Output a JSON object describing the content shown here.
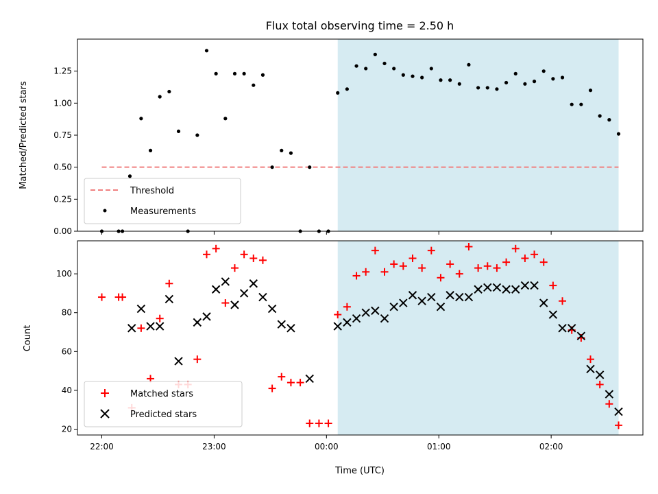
{
  "chart_data": {
    "type": "scatter",
    "title": "Flux total observing time = 2.50 h",
    "xlabel": "Time (UTC)",
    "x_ticks": [
      "22:00",
      "23:00",
      "00:00",
      "01:00",
      "02:00"
    ],
    "x_range": [
      "21:47",
      "02:49"
    ],
    "shaded_interval": {
      "start": "00:06",
      "end": "02:36",
      "color": "#add8e6"
    },
    "panels": [
      {
        "id": "ratio",
        "ylabel": "Matched/Predicted stars",
        "ylim": [
          0,
          1.5
        ],
        "yticks": [
          "0.00",
          "0.25",
          "0.50",
          "0.75",
          "1.00",
          "1.25"
        ],
        "threshold": {
          "name": "Threshold",
          "value": 0.5,
          "from": "22:00",
          "to": "02:36",
          "color": "#f08080"
        },
        "series": [
          {
            "name": "Measurements",
            "color": "#000000",
            "x": [
              "22:00",
              "22:09",
              "22:11",
              "22:15",
              "22:21",
              "22:26",
              "22:31",
              "22:36",
              "22:41",
              "22:46",
              "22:51",
              "22:56",
              "23:01",
              "23:06",
              "23:11",
              "23:16",
              "23:21",
              "23:26",
              "23:31",
              "23:36",
              "23:41",
              "23:46",
              "23:51",
              "23:56",
              "00:01",
              "00:06",
              "00:11",
              "00:16",
              "00:21",
              "00:26",
              "00:31",
              "00:36",
              "00:41",
              "00:46",
              "00:51",
              "00:56",
              "01:01",
              "01:06",
              "01:11",
              "01:16",
              "01:21",
              "01:26",
              "01:31",
              "01:36",
              "01:41",
              "01:46",
              "01:51",
              "01:56",
              "02:01",
              "02:06",
              "02:11",
              "02:16",
              "02:21",
              "02:26",
              "02:31",
              "02:36"
            ],
            "y": [
              0.0,
              0.0,
              0.0,
              0.43,
              0.88,
              0.63,
              1.05,
              1.09,
              0.78,
              0.0,
              0.75,
              1.41,
              1.23,
              0.88,
              1.23,
              1.23,
              1.14,
              1.22,
              0.5,
              0.63,
              0.61,
              0.0,
              0.5,
              0.0,
              0.0,
              1.08,
              1.11,
              1.29,
              1.27,
              1.38,
              1.31,
              1.27,
              1.22,
              1.21,
              1.2,
              1.27,
              1.18,
              1.18,
              1.15,
              1.3,
              1.12,
              1.12,
              1.11,
              1.16,
              1.23,
              1.15,
              1.17,
              1.25,
              1.19,
              1.2,
              0.99,
              0.99,
              1.1,
              0.9,
              0.87,
              0.76
            ]
          }
        ]
      },
      {
        "id": "counts",
        "ylabel": "Count",
        "ylim": [
          17,
          117
        ],
        "yticks": [
          "20",
          "40",
          "60",
          "80",
          "100"
        ],
        "series": [
          {
            "name": "Matched stars",
            "color": "#ff0000",
            "x": [
              "22:00",
              "22:09",
              "22:11",
              "22:16",
              "22:21",
              "22:26",
              "22:31",
              "22:36",
              "22:41",
              "22:46",
              "22:51",
              "22:56",
              "23:01",
              "23:06",
              "23:11",
              "23:16",
              "23:21",
              "23:26",
              "23:31",
              "23:36",
              "23:41",
              "23:46",
              "23:51",
              "23:56",
              "00:01",
              "00:06",
              "00:11",
              "00:16",
              "00:21",
              "00:26",
              "00:31",
              "00:36",
              "00:41",
              "00:46",
              "00:51",
              "00:56",
              "01:01",
              "01:06",
              "01:11",
              "01:16",
              "01:21",
              "01:26",
              "01:31",
              "01:36",
              "01:41",
              "01:46",
              "01:51",
              "01:56",
              "02:01",
              "02:06",
              "02:11",
              "02:16",
              "02:21",
              "02:26",
              "02:31",
              "02:36"
            ],
            "y": [
              88,
              88,
              88,
              31,
              72,
              46,
              77,
              95,
              43,
              43,
              56,
              110,
              113,
              85,
              103,
              110,
              108,
              107,
              41,
              47,
              44,
              44,
              23,
              23,
              23,
              79,
              83,
              99,
              101,
              112,
              101,
              105,
              104,
              108,
              103,
              112,
              98,
              105,
              100,
              114,
              103,
              104,
              103,
              106,
              113,
              108,
              110,
              106,
              94,
              86,
              71,
              67,
              56,
              43,
              33,
              22
            ]
          },
          {
            "name": "Predicted stars",
            "color": "#000000",
            "x": [
              "22:16",
              "22:21",
              "22:26",
              "22:31",
              "22:36",
              "22:41",
              "22:51",
              "22:56",
              "23:01",
              "23:06",
              "23:11",
              "23:16",
              "23:21",
              "23:26",
              "23:31",
              "23:36",
              "23:41",
              "23:51",
              "00:06",
              "00:11",
              "00:16",
              "00:21",
              "00:26",
              "00:31",
              "00:36",
              "00:41",
              "00:46",
              "00:51",
              "00:56",
              "01:01",
              "01:06",
              "01:11",
              "01:16",
              "01:21",
              "01:26",
              "01:31",
              "01:36",
              "01:41",
              "01:46",
              "01:51",
              "01:56",
              "02:01",
              "02:06",
              "02:11",
              "02:16",
              "02:21",
              "02:26",
              "02:31",
              "02:36"
            ],
            "y": [
              72,
              82,
              73,
              73,
              87,
              55,
              75,
              78,
              92,
              96,
              84,
              90,
              95,
              88,
              82,
              74,
              72,
              46,
              73,
              75,
              77,
              80,
              81,
              77,
              83,
              85,
              89,
              86,
              88,
              83,
              89,
              88,
              88,
              92,
              93,
              93,
              92,
              92,
              94,
              94,
              85,
              79,
              72,
              72,
              68,
              51,
              48,
              38,
              29
            ]
          }
        ]
      }
    ]
  }
}
